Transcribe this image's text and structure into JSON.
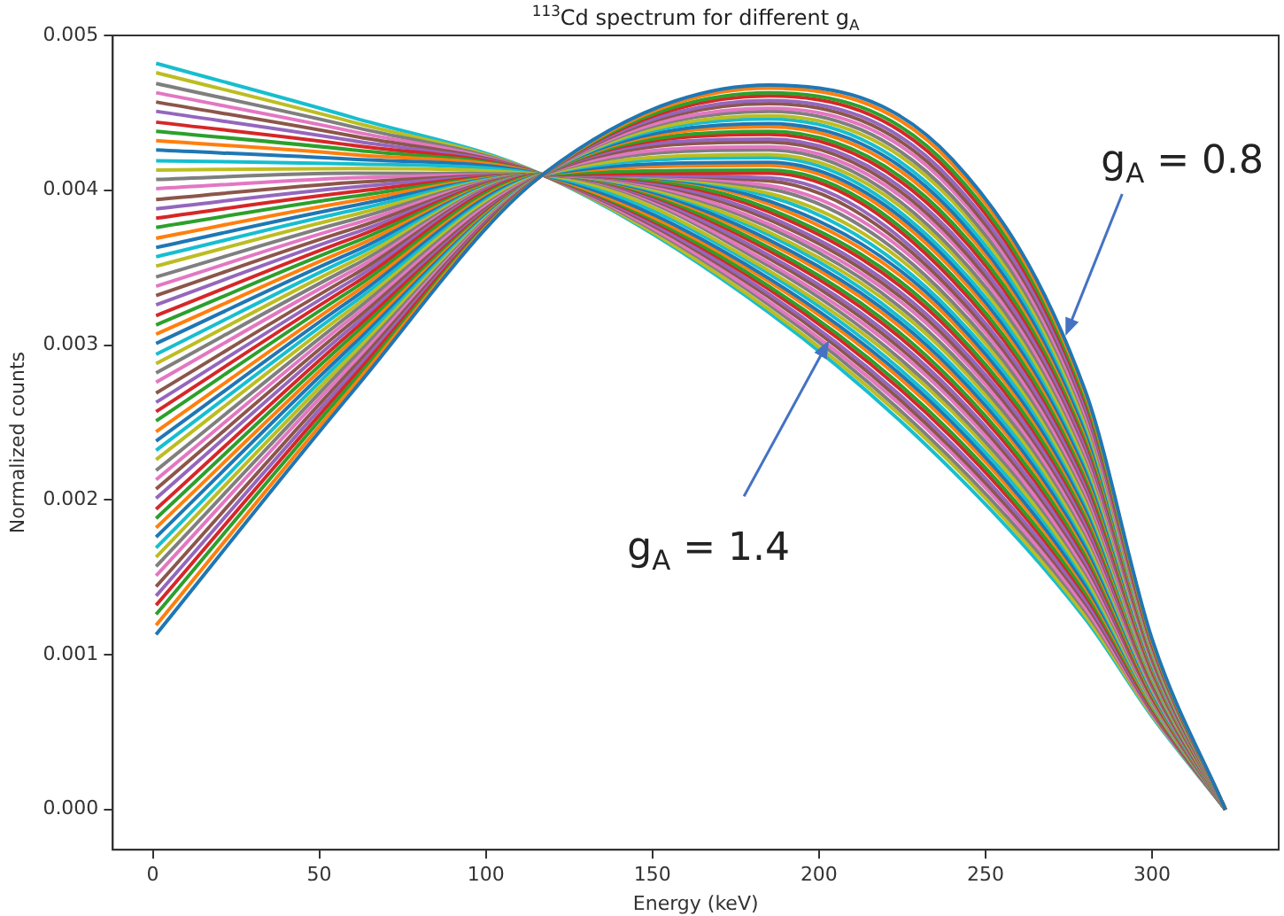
{
  "chart_data": {
    "type": "line",
    "title": "$^{113}$Cd spectrum for different g$_{A}$",
    "xlabel": "Energy (keV)",
    "ylabel": "Normalized counts",
    "xlim": [
      -12,
      338
    ],
    "xticks": [
      0,
      50,
      100,
      150,
      200,
      250,
      300
    ],
    "ylim": [
      -0.00026,
      0.005
    ],
    "yticks": [
      {
        "value": 0,
        "label": "0.000"
      },
      0.001,
      0.002,
      0.003,
      0.004,
      0.005
    ],
    "grid": false,
    "legend": false,
    "marker": "none",
    "line_style": "solid",
    "annotations": [
      {
        "text": "g$_{A}$ = 0.8",
        "x": 274,
        "y": 0.00306
      },
      {
        "text": "g$_{A}$ = 1.4",
        "x": 203,
        "y": 0.00303
      }
    ],
    "x": [
      1,
      60,
      117,
      185,
      240,
      280,
      300,
      322
    ],
    "series": [
      {
        "color": "#1f77b4",
        "values": [
          0.00113,
          0.0027,
          0.0041,
          0.00468,
          0.0042,
          0.0027,
          0.0011,
          0
        ]
      },
      {
        "color": "#ff7f0e",
        "values": [
          0.00119,
          0.00273,
          0.0041,
          0.00466,
          0.00417,
          0.00268,
          0.00109,
          0
        ]
      },
      {
        "color": "#2ca02c",
        "values": [
          0.00126,
          0.00276,
          0.0041,
          0.00463,
          0.00413,
          0.00265,
          0.00108,
          0
        ]
      },
      {
        "color": "#d62728",
        "values": [
          0.00132,
          0.00279,
          0.0041,
          0.00461,
          0.0041,
          0.00263,
          0.00107,
          0
        ]
      },
      {
        "color": "#9467bd",
        "values": [
          0.00138,
          0.00282,
          0.0041,
          0.00458,
          0.00406,
          0.0026,
          0.00107,
          0
        ]
      },
      {
        "color": "#8c564b",
        "values": [
          0.00144,
          0.00285,
          0.0041,
          0.00456,
          0.00403,
          0.00258,
          0.00106,
          0
        ]
      },
      {
        "color": "#e377c2",
        "values": [
          0.00151,
          0.00288,
          0.0041,
          0.00453,
          0.004,
          0.00255,
          0.00105,
          0
        ]
      },
      {
        "color": "#7f7f7f",
        "values": [
          0.00157,
          0.00291,
          0.0041,
          0.00451,
          0.00396,
          0.00253,
          0.00104,
          0
        ]
      },
      {
        "color": "#bcbd22",
        "values": [
          0.00163,
          0.00294,
          0.0041,
          0.00448,
          0.00393,
          0.0025,
          0.00103,
          0
        ]
      },
      {
        "color": "#17becf",
        "values": [
          0.00169,
          0.00297,
          0.0041,
          0.00446,
          0.00389,
          0.00248,
          0.00102,
          0
        ]
      },
      {
        "color": "#1f77b4",
        "values": [
          0.00176,
          0.003,
          0.0041,
          0.00443,
          0.00386,
          0.00245,
          0.00102,
          0
        ]
      },
      {
        "color": "#ff7f0e",
        "values": [
          0.00182,
          0.00303,
          0.0041,
          0.00441,
          0.00383,
          0.00243,
          0.00101,
          0
        ]
      },
      {
        "color": "#2ca02c",
        "values": [
          0.00188,
          0.00306,
          0.0041,
          0.00438,
          0.00379,
          0.0024,
          0.001,
          0
        ]
      },
      {
        "color": "#d62728",
        "values": [
          0.00194,
          0.00309,
          0.0041,
          0.00436,
          0.00376,
          0.00238,
          0.00099,
          0
        ]
      },
      {
        "color": "#9467bd",
        "values": [
          0.00201,
          0.00312,
          0.0041,
          0.00433,
          0.00372,
          0.00235,
          0.00098,
          0
        ]
      },
      {
        "color": "#8c564b",
        "values": [
          0.00207,
          0.00315,
          0.0041,
          0.00431,
          0.00369,
          0.00233,
          0.00097,
          0
        ]
      },
      {
        "color": "#e377c2",
        "values": [
          0.00213,
          0.00318,
          0.0041,
          0.00428,
          0.00366,
          0.0023,
          0.00096,
          0
        ]
      },
      {
        "color": "#7f7f7f",
        "values": [
          0.00219,
          0.00321,
          0.0041,
          0.00426,
          0.00362,
          0.00228,
          0.00096,
          0
        ]
      },
      {
        "color": "#bcbd22",
        "values": [
          0.00226,
          0.00324,
          0.0041,
          0.00423,
          0.00359,
          0.00225,
          0.00095,
          0
        ]
      },
      {
        "color": "#17becf",
        "values": [
          0.00232,
          0.00327,
          0.0041,
          0.00421,
          0.00355,
          0.00223,
          0.00094,
          0
        ]
      },
      {
        "color": "#1f77b4",
        "values": [
          0.00238,
          0.0033,
          0.0041,
          0.00418,
          0.00352,
          0.0022,
          0.00093,
          0
        ]
      },
      {
        "color": "#ff7f0e",
        "values": [
          0.00244,
          0.00333,
          0.0041,
          0.00416,
          0.00349,
          0.00218,
          0.00092,
          0
        ]
      },
      {
        "color": "#2ca02c",
        "values": [
          0.00251,
          0.00336,
          0.0041,
          0.00413,
          0.00345,
          0.00215,
          0.00091,
          0
        ]
      },
      {
        "color": "#d62728",
        "values": [
          0.00257,
          0.00339,
          0.0041,
          0.00411,
          0.00342,
          0.00213,
          0.0009,
          0
        ]
      },
      {
        "color": "#9467bd",
        "values": [
          0.00263,
          0.00342,
          0.0041,
          0.00408,
          0.00338,
          0.0021,
          0.0009,
          0
        ]
      },
      {
        "color": "#8c564b",
        "values": [
          0.00269,
          0.00345,
          0.0041,
          0.00406,
          0.00335,
          0.00208,
          0.00089,
          0
        ]
      },
      {
        "color": "#e377c2",
        "values": [
          0.00276,
          0.00348,
          0.0041,
          0.00403,
          0.00332,
          0.00205,
          0.00088,
          0
        ]
      },
      {
        "color": "#7f7f7f",
        "values": [
          0.00282,
          0.00351,
          0.0041,
          0.00401,
          0.00328,
          0.00203,
          0.00087,
          0
        ]
      },
      {
        "color": "#bcbd22",
        "values": [
          0.00288,
          0.00354,
          0.0041,
          0.00398,
          0.00325,
          0.002,
          0.00086,
          0
        ]
      },
      {
        "color": "#17becf",
        "values": [
          0.00294,
          0.00357,
          0.0041,
          0.00396,
          0.00321,
          0.00198,
          0.00085,
          0
        ]
      },
      {
        "color": "#1f77b4",
        "values": [
          0.00301,
          0.0036,
          0.0041,
          0.00393,
          0.00318,
          0.00195,
          0.00085,
          0
        ]
      },
      {
        "color": "#ff7f0e",
        "values": [
          0.00307,
          0.00363,
          0.0041,
          0.00391,
          0.00315,
          0.00193,
          0.00084,
          0
        ]
      },
      {
        "color": "#2ca02c",
        "values": [
          0.00313,
          0.00366,
          0.0041,
          0.00388,
          0.00311,
          0.0019,
          0.00083,
          0
        ]
      },
      {
        "color": "#d62728",
        "values": [
          0.00319,
          0.00369,
          0.0041,
          0.00386,
          0.00308,
          0.00188,
          0.00082,
          0
        ]
      },
      {
        "color": "#9467bd",
        "values": [
          0.00326,
          0.00372,
          0.0041,
          0.00383,
          0.00304,
          0.00185,
          0.00081,
          0
        ]
      },
      {
        "color": "#8c564b",
        "values": [
          0.00332,
          0.00375,
          0.0041,
          0.00381,
          0.00301,
          0.00183,
          0.0008,
          0
        ]
      },
      {
        "color": "#e377c2",
        "values": [
          0.00338,
          0.00378,
          0.0041,
          0.00378,
          0.00298,
          0.0018,
          0.00079,
          0
        ]
      },
      {
        "color": "#7f7f7f",
        "values": [
          0.00344,
          0.00381,
          0.0041,
          0.00376,
          0.00294,
          0.00178,
          0.00079,
          0
        ]
      },
      {
        "color": "#bcbd22",
        "values": [
          0.00351,
          0.00384,
          0.0041,
          0.00373,
          0.00291,
          0.00175,
          0.00078,
          0
        ]
      },
      {
        "color": "#17becf",
        "values": [
          0.00357,
          0.00387,
          0.0041,
          0.00371,
          0.00287,
          0.00173,
          0.00077,
          0
        ]
      },
      {
        "color": "#1f77b4",
        "values": [
          0.00363,
          0.0039,
          0.0041,
          0.00368,
          0.00284,
          0.0017,
          0.00076,
          0
        ]
      },
      {
        "color": "#ff7f0e",
        "values": [
          0.00369,
          0.00393,
          0.0041,
          0.00366,
          0.00281,
          0.00168,
          0.00075,
          0
        ]
      },
      {
        "color": "#2ca02c",
        "values": [
          0.00376,
          0.00396,
          0.0041,
          0.00363,
          0.00277,
          0.00165,
          0.00074,
          0
        ]
      },
      {
        "color": "#d62728",
        "values": [
          0.00382,
          0.00399,
          0.0041,
          0.00361,
          0.00274,
          0.00163,
          0.00073,
          0
        ]
      },
      {
        "color": "#9467bd",
        "values": [
          0.00388,
          0.00402,
          0.0041,
          0.00358,
          0.0027,
          0.0016,
          0.00073,
          0
        ]
      },
      {
        "color": "#8c564b",
        "values": [
          0.00394,
          0.00405,
          0.0041,
          0.00356,
          0.00267,
          0.00158,
          0.00072,
          0
        ]
      },
      {
        "color": "#e377c2",
        "values": [
          0.00401,
          0.00408,
          0.0041,
          0.00353,
          0.00264,
          0.00155,
          0.00071,
          0
        ]
      },
      {
        "color": "#7f7f7f",
        "values": [
          0.00407,
          0.00411,
          0.0041,
          0.00351,
          0.0026,
          0.00153,
          0.0007,
          0
        ]
      },
      {
        "color": "#bcbd22",
        "values": [
          0.00413,
          0.00414,
          0.0041,
          0.00348,
          0.00257,
          0.0015,
          0.00069,
          0
        ]
      },
      {
        "color": "#17becf",
        "values": [
          0.00419,
          0.00417,
          0.0041,
          0.00346,
          0.00253,
          0.00148,
          0.00068,
          0
        ]
      },
      {
        "color": "#1f77b4",
        "values": [
          0.00426,
          0.0042,
          0.0041,
          0.00343,
          0.0025,
          0.00145,
          0.00068,
          0
        ]
      },
      {
        "color": "#ff7f0e",
        "values": [
          0.00432,
          0.00423,
          0.0041,
          0.00341,
          0.00247,
          0.00143,
          0.00067,
          0
        ]
      },
      {
        "color": "#2ca02c",
        "values": [
          0.00438,
          0.00426,
          0.0041,
          0.00338,
          0.00243,
          0.0014,
          0.00066,
          0
        ]
      },
      {
        "color": "#d62728",
        "values": [
          0.00444,
          0.00429,
          0.0041,
          0.00336,
          0.0024,
          0.00138,
          0.00065,
          0
        ]
      },
      {
        "color": "#9467bd",
        "values": [
          0.00451,
          0.00432,
          0.0041,
          0.00333,
          0.00236,
          0.00135,
          0.00064,
          0
        ]
      },
      {
        "color": "#8c564b",
        "values": [
          0.00457,
          0.00435,
          0.0041,
          0.00331,
          0.00233,
          0.00133,
          0.00063,
          0
        ]
      },
      {
        "color": "#e377c2",
        "values": [
          0.00463,
          0.00438,
          0.0041,
          0.00328,
          0.0023,
          0.0013,
          0.00062,
          0
        ]
      },
      {
        "color": "#7f7f7f",
        "values": [
          0.00469,
          0.00441,
          0.0041,
          0.00326,
          0.00226,
          0.00128,
          0.00062,
          0
        ]
      },
      {
        "color": "#bcbd22",
        "values": [
          0.00476,
          0.00444,
          0.0041,
          0.00323,
          0.00223,
          0.00125,
          0.00061,
          0
        ]
      },
      {
        "color": "#17becf",
        "values": [
          0.00482,
          0.00447,
          0.0041,
          0.00321,
          0.00219,
          0.00123,
          0.0006,
          0
        ]
      }
    ]
  }
}
